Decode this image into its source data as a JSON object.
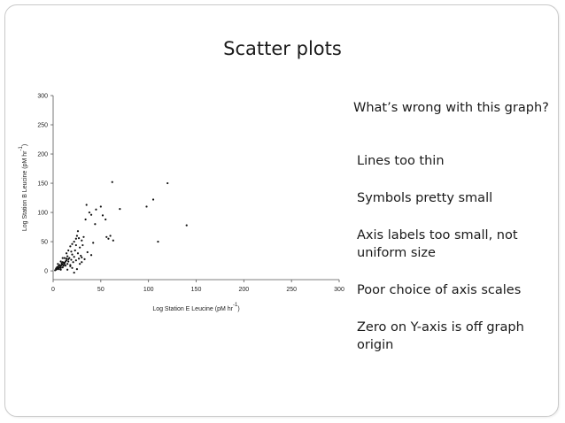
{
  "slide": {
    "title": "Scatter plots",
    "question": "What’s wrong with this graph?",
    "bullets": [
      "Lines too thin",
      "Symbols pretty small",
      "Axis labels too small, not uniform size",
      "Poor choice of axis scales",
      "Zero on Y-axis is off graph origin"
    ]
  },
  "chart_data": {
    "type": "scatter",
    "xlabel": "Log Station E Leucine (pM hr",
    "xlabel_superscript": "-1",
    "ylabel": "Log Station B Leucine (pM hr",
    "ylabel_superscript": "-1",
    "xlim": [
      0,
      300
    ],
    "ylim": [
      -15,
      300
    ],
    "xticks": [
      "0",
      "50",
      "100",
      "150",
      "200",
      "250",
      "300"
    ],
    "yticks": [
      "0",
      "50",
      "100",
      "150",
      "200",
      "250",
      "300"
    ],
    "grid": false,
    "marker_color": "#111111",
    "points": [
      [
        2,
        1
      ],
      [
        3,
        2
      ],
      [
        4,
        3
      ],
      [
        5,
        4
      ],
      [
        6,
        5
      ],
      [
        7,
        6
      ],
      [
        8,
        5
      ],
      [
        3,
        4
      ],
      [
        5,
        7
      ],
      [
        6,
        9
      ],
      [
        8,
        8
      ],
      [
        9,
        10
      ],
      [
        10,
        11
      ],
      [
        11,
        9
      ],
      [
        12,
        12
      ],
      [
        4,
        6
      ],
      [
        7,
        10
      ],
      [
        9,
        13
      ],
      [
        10,
        15
      ],
      [
        12,
        14
      ],
      [
        13,
        16
      ],
      [
        14,
        18
      ],
      [
        15,
        12
      ],
      [
        16,
        20
      ],
      [
        6,
        3
      ],
      [
        8,
        2
      ],
      [
        10,
        6
      ],
      [
        11,
        14
      ],
      [
        13,
        9
      ],
      [
        14,
        21
      ],
      [
        15,
        25
      ],
      [
        16,
        16
      ],
      [
        17,
        22
      ],
      [
        18,
        10
      ],
      [
        19,
        19
      ],
      [
        20,
        28
      ],
      [
        21,
        15
      ],
      [
        22,
        24
      ],
      [
        23,
        35
      ],
      [
        24,
        18
      ],
      [
        26,
        30
      ],
      [
        27,
        21
      ],
      [
        28,
        40
      ],
      [
        29,
        26
      ],
      [
        30,
        23
      ],
      [
        31,
        44
      ],
      [
        12,
        22
      ],
      [
        14,
        30
      ],
      [
        16,
        35
      ],
      [
        18,
        42
      ],
      [
        20,
        46
      ],
      [
        22,
        50
      ],
      [
        24,
        55
      ],
      [
        25,
        60
      ],
      [
        26,
        68
      ],
      [
        30,
        52
      ],
      [
        32,
        58
      ],
      [
        34,
        88
      ],
      [
        35,
        113
      ],
      [
        38,
        100
      ],
      [
        40,
        96
      ],
      [
        42,
        48
      ],
      [
        44,
        80
      ],
      [
        45,
        105
      ],
      [
        50,
        110
      ],
      [
        52,
        95
      ],
      [
        55,
        88
      ],
      [
        56,
        58
      ],
      [
        58,
        55
      ],
      [
        60,
        60
      ],
      [
        62,
        152
      ],
      [
        63,
        52
      ],
      [
        70,
        106
      ],
      [
        98,
        110
      ],
      [
        105,
        122
      ],
      [
        110,
        50
      ],
      [
        120,
        150
      ],
      [
        140,
        78
      ],
      [
        18,
        8
      ],
      [
        20,
        5
      ],
      [
        25,
        3
      ],
      [
        28,
        12
      ],
      [
        30,
        15
      ],
      [
        33,
        20
      ],
      [
        36,
        32
      ],
      [
        40,
        27
      ],
      [
        15,
        2
      ],
      [
        22,
        -3
      ],
      [
        10,
        22
      ],
      [
        8,
        16
      ],
      [
        24,
        44
      ],
      [
        19,
        33
      ],
      [
        27,
        56
      ],
      [
        5,
        12
      ]
    ]
  }
}
